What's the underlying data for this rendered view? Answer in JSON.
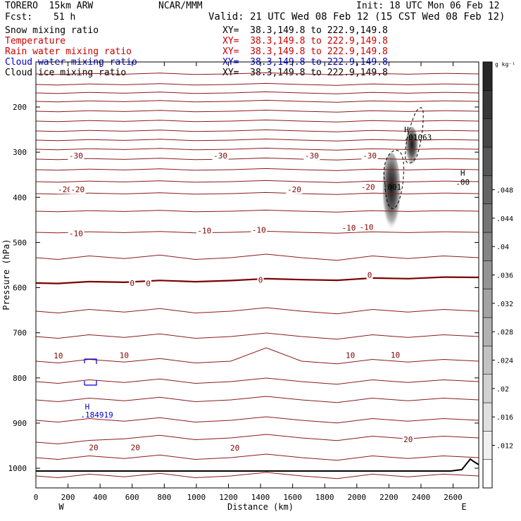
{
  "header": {
    "model": "TORERO  15km ARW",
    "org": "NCAR/MMM",
    "init": "Init: 18 UTC Mon 06 Feb 12",
    "fcst_label": "Fcst:",
    "fcst_value": "51 h",
    "valid": "Valid: 21 UTC Wed 08 Feb 12 (15 CST Wed 08 Feb 12)"
  },
  "fields": [
    {
      "name": "Snow mixing ratio",
      "xy": "XY=  38.3,149.8 to 222.9,149.8",
      "color": "#000000"
    },
    {
      "name": "Temperature",
      "xy": "XY=  38.3,149.8 to 222.9,149.8",
      "color": "#cc0000"
    },
    {
      "name": "Rain water mixing ratio",
      "xy": "XY=  38.3,149.8 to 222.9,149.8",
      "color": "#cc0000"
    },
    {
      "name": "Cloud water mixing ratio",
      "xy": "XY=  38.3,149.8 to 222.9,149.8",
      "color": "#0000cc"
    },
    {
      "name": "Cloud ice mixing ratio",
      "xy": "XY=  38.3,149.8 to 222.9,149.8",
      "color": "#000000"
    }
  ],
  "chart_data": {
    "type": "line",
    "xlabel": "Distance (km)",
    "ylabel": "Pressure (hPa)",
    "xlim": [
      0,
      2760
    ],
    "ylim": [
      1050,
      100
    ],
    "x_ticks": [
      0,
      200,
      400,
      600,
      800,
      1000,
      1200,
      1400,
      1600,
      1800,
      2000,
      2200,
      2400,
      2600
    ],
    "y_ticks": [
      200,
      300,
      400,
      500,
      600,
      700,
      800,
      900,
      1000
    ],
    "x_end_labels": [
      "W",
      "E"
    ],
    "colorbar": {
      "unit": "g kg⁻¹",
      "ticks": [
        ".012",
        ".016",
        ".02",
        ".024",
        ".028",
        ".032",
        ".036",
        ".04",
        ".044",
        ".048"
      ],
      "levels": 15
    },
    "temperature_labels": [
      {
        "x": 250,
        "p": 314,
        "text": "-30"
      },
      {
        "x": 1150,
        "p": 314,
        "text": "-30"
      },
      {
        "x": 1720,
        "p": 314,
        "text": "-30"
      },
      {
        "x": 2080,
        "p": 314,
        "text": "-30"
      },
      {
        "x": 180,
        "p": 389,
        "text": "-20"
      },
      {
        "x": 260,
        "p": 389,
        "text": "-20"
      },
      {
        "x": 1610,
        "p": 389,
        "text": "-20"
      },
      {
        "x": 2070,
        "p": 383,
        "text": "-20"
      },
      {
        "x": 250,
        "p": 486,
        "text": "-10"
      },
      {
        "x": 1050,
        "p": 480,
        "text": "-10"
      },
      {
        "x": 1390,
        "p": 478,
        "text": "-10"
      },
      {
        "x": 1950,
        "p": 474,
        "text": "-10"
      },
      {
        "x": 2060,
        "p": 472,
        "text": "-10"
      },
      {
        "x": 600,
        "p": 596,
        "text": "0"
      },
      {
        "x": 700,
        "p": 597,
        "text": "0"
      },
      {
        "x": 1400,
        "p": 589,
        "text": "0"
      },
      {
        "x": 2080,
        "p": 578,
        "text": "0"
      },
      {
        "x": 140,
        "p": 757,
        "text": "10"
      },
      {
        "x": 550,
        "p": 756,
        "text": "10"
      },
      {
        "x": 1960,
        "p": 756,
        "text": "10"
      },
      {
        "x": 2240,
        "p": 755,
        "text": "10"
      },
      {
        "x": 360,
        "p": 960,
        "text": "20"
      },
      {
        "x": 620,
        "p": 960,
        "text": "20"
      },
      {
        "x": 1240,
        "p": 961,
        "text": "20"
      },
      {
        "x": 2320,
        "p": 942,
        "text": "20"
      }
    ],
    "extrema_labels": [
      {
        "x": 320,
        "p": 870,
        "text": "H",
        "color": "#0000cc"
      },
      {
        "x": 380,
        "p": 888,
        "text": ".184919",
        "color": "#0000cc"
      },
      {
        "x": 2310,
        "p": 256,
        "text": "H",
        "color": "#000000"
      },
      {
        "x": 2380,
        "p": 273,
        "text": ".01063",
        "color": "#000000"
      },
      {
        "x": 2660,
        "p": 352,
        "text": "H",
        "color": "#000000"
      },
      {
        "x": 2660,
        "p": 372,
        "text": ".00",
        "color": "#000000"
      },
      {
        "x": 2220,
        "p": 383,
        "text": ".001",
        "color": "#000000"
      }
    ]
  }
}
